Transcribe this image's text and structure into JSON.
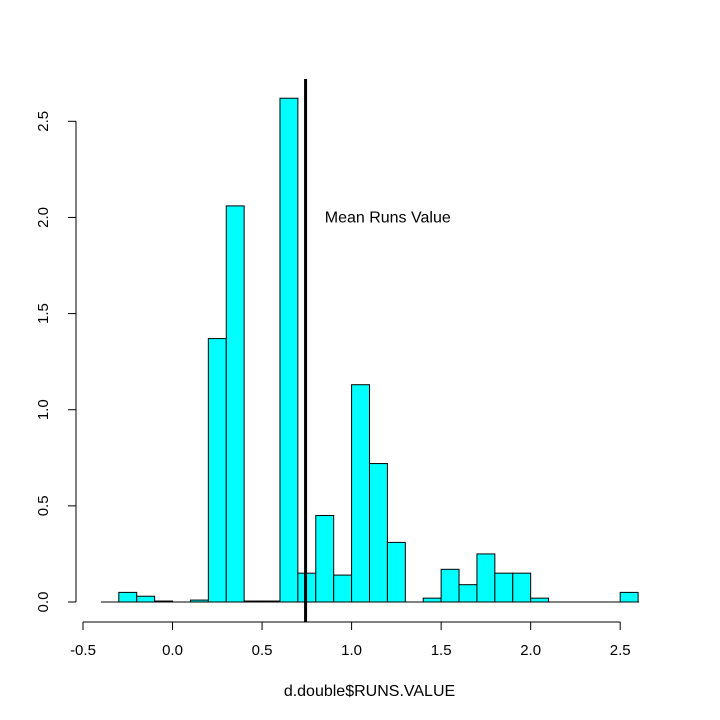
{
  "chart_data": {
    "type": "bar",
    "subtype": "histogram",
    "xlabel": "d.double$RUNS.VALUE",
    "ylabel": "",
    "xlim": [
      -0.5,
      2.7
    ],
    "ylim": [
      0,
      2.72
    ],
    "x_ticks": [
      -0.5,
      0.0,
      0.5,
      1.0,
      1.5,
      2.0,
      2.5
    ],
    "x_tick_labels": [
      "-0.5",
      "0.0",
      "0.5",
      "1.0",
      "1.5",
      "2.0",
      "2.5"
    ],
    "y_ticks": [
      0.0,
      0.5,
      1.0,
      1.5,
      2.0,
      2.5
    ],
    "y_tick_labels": [
      "0.0",
      "0.5",
      "1.0",
      "1.5",
      "2.0",
      "2.5"
    ],
    "bin_width": 0.1,
    "bins": [
      {
        "x0": -0.4,
        "x1": -0.3,
        "density": 0.0
      },
      {
        "x0": -0.3,
        "x1": -0.2,
        "density": 0.05
      },
      {
        "x0": -0.2,
        "x1": -0.1,
        "density": 0.03
      },
      {
        "x0": -0.1,
        "x1": 0.0,
        "density": 0.005
      },
      {
        "x0": 0.0,
        "x1": 0.1,
        "density": 0.0
      },
      {
        "x0": 0.1,
        "x1": 0.2,
        "density": 0.01
      },
      {
        "x0": 0.2,
        "x1": 0.3,
        "density": 1.37
      },
      {
        "x0": 0.3,
        "x1": 0.4,
        "density": 2.06
      },
      {
        "x0": 0.4,
        "x1": 0.5,
        "density": 0.005
      },
      {
        "x0": 0.5,
        "x1": 0.6,
        "density": 0.005
      },
      {
        "x0": 0.6,
        "x1": 0.7,
        "density": 2.62
      },
      {
        "x0": 0.7,
        "x1": 0.8,
        "density": 0.15
      },
      {
        "x0": 0.8,
        "x1": 0.9,
        "density": 0.45
      },
      {
        "x0": 0.9,
        "x1": 1.0,
        "density": 0.14
      },
      {
        "x0": 1.0,
        "x1": 1.1,
        "density": 1.13
      },
      {
        "x0": 1.1,
        "x1": 1.2,
        "density": 0.72
      },
      {
        "x0": 1.2,
        "x1": 1.3,
        "density": 0.31
      },
      {
        "x0": 1.3,
        "x1": 1.4,
        "density": 0.0
      },
      {
        "x0": 1.4,
        "x1": 1.5,
        "density": 0.02
      },
      {
        "x0": 1.5,
        "x1": 1.6,
        "density": 0.17
      },
      {
        "x0": 1.6,
        "x1": 1.7,
        "density": 0.09
      },
      {
        "x0": 1.7,
        "x1": 1.8,
        "density": 0.25
      },
      {
        "x0": 1.8,
        "x1": 1.9,
        "density": 0.15
      },
      {
        "x0": 1.9,
        "x1": 2.0,
        "density": 0.15
      },
      {
        "x0": 2.0,
        "x1": 2.1,
        "density": 0.02
      },
      {
        "x0": 2.1,
        "x1": 2.2,
        "density": 0.0
      },
      {
        "x0": 2.2,
        "x1": 2.3,
        "density": 0.0
      },
      {
        "x0": 2.3,
        "x1": 2.4,
        "density": 0.0
      },
      {
        "x0": 2.4,
        "x1": 2.5,
        "density": 0.0
      },
      {
        "x0": 2.5,
        "x1": 2.6,
        "density": 0.05
      }
    ],
    "reference_line": {
      "x": 0.743,
      "label": ""
    },
    "annotation": {
      "text": "Mean Runs Value",
      "x": 0.85,
      "y": 2.0
    },
    "bar_color": "#00FFFF",
    "bar_stroke": "#000000",
    "grid": false,
    "legend": "none"
  }
}
